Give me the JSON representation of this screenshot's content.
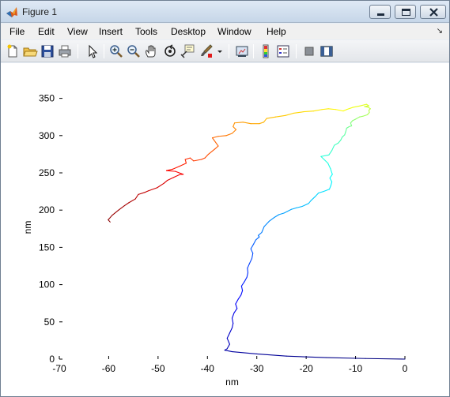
{
  "window": {
    "title": "Figure 1"
  },
  "menu": {
    "items": [
      "File",
      "Edit",
      "View",
      "Insert",
      "Tools",
      "Desktop",
      "Window",
      "Help"
    ],
    "overflow_arrow": "↘"
  },
  "toolbar": {
    "icons": [
      "new-file-icon",
      "open-folder-icon",
      "save-icon",
      "print-icon",
      "pointer-icon",
      "zoom-in-icon",
      "zoom-out-icon",
      "pan-hand-icon",
      "rotate-3d-icon",
      "data-cursor-icon",
      "brush-icon",
      "link-plot-icon",
      "colorbar-icon",
      "legend-icon",
      "hide-plot-tools-icon",
      "show-plot-tools-icon"
    ]
  },
  "chart_data": {
    "type": "line",
    "title": "",
    "xlabel": "nm",
    "ylabel": "nm",
    "xlim": [
      -70,
      0
    ],
    "ylim": [
      0,
      375
    ],
    "xticks": [
      -70,
      -60,
      -50,
      -40,
      -30,
      -20,
      -10,
      0
    ],
    "yticks": [
      0,
      50,
      100,
      150,
      200,
      250,
      300,
      350
    ],
    "xtick_labels": [
      "-70",
      "-60",
      "-50",
      "-40",
      "-30",
      "-20",
      "-10",
      "0"
    ],
    "ytick_labels": [
      "0",
      "50",
      "100",
      "150",
      "200",
      "250",
      "300",
      "350"
    ],
    "grid": false,
    "colormap": "jet",
    "color_start": "#00008f",
    "color_end": "#800000",
    "series": [
      {
        "x": [
          0,
          -8,
          -16,
          -24,
          -30,
          -35,
          -36.5,
          -36,
          -35.5,
          -36,
          -35.5,
          -35,
          -34.8,
          -35,
          -34.6,
          -34,
          -34.3,
          -33.8,
          -33.2,
          -32.9,
          -33.1,
          -32.5,
          -32,
          -31.8,
          -31.9,
          -31.5,
          -31,
          -30.8,
          -31.2,
          -30.6,
          -30.2,
          -29.5,
          -29.7,
          -29,
          -28.5,
          -27.5,
          -26.5,
          -25.5,
          -24.5,
          -23,
          -22,
          -20.8,
          -19.5,
          -19,
          -18.2,
          -17.5,
          -16.5,
          -15.3,
          -15,
          -14.8,
          -15.2,
          -14.7,
          -14.9,
          -15.1,
          -15.6,
          -17.0,
          -15.4,
          -14.8,
          -14.3,
          -13.5,
          -13,
          -12.7,
          -12.2,
          -12,
          -11.8,
          -11.3,
          -10.8,
          -11,
          -10.6,
          -10,
          -9.2,
          -8.5,
          -7.6,
          -7.2,
          -7.3,
          -7.0,
          -7.4,
          -8.2,
          -7.3,
          -7.8,
          -9.0,
          -10.5,
          -11.8,
          -12.5,
          -14,
          -15.5,
          -16.8,
          -18.5,
          -20.5,
          -22.6,
          -24.2,
          -26.2,
          -28,
          -28.6,
          -29.5,
          -31.2,
          -32.8,
          -34.5,
          -34.8,
          -34.2,
          -35,
          -36.2,
          -37.8,
          -39.0,
          -37.8,
          -38.5,
          -39.8,
          -40.5,
          -41.2,
          -42.8,
          -43.5,
          -44.5,
          -44.3,
          -45.6,
          -47,
          -48.3,
          -46.5,
          -44.9,
          -45.5,
          -46.8,
          -48.1,
          -48.8,
          -50.2,
          -51.9,
          -52.6,
          -54.0,
          -54.6,
          -55.9,
          -56.8,
          -58.0,
          -59.3,
          -60.1,
          -59.7
        ],
        "y": [
          0,
          0.8,
          2,
          4,
          7,
          10,
          12,
          14,
          20,
          28,
          35,
          42,
          48,
          55,
          62,
          68,
          74,
          80,
          86,
          92,
          98,
          104,
          110,
          116,
          122,
          128,
          135,
          142,
          148,
          155,
          160,
          164,
          166,
          170,
          178,
          185,
          190,
          194,
          196,
          201,
          203,
          205,
          209,
          213,
          218,
          223,
          225,
          228,
          233,
          238,
          243,
          248,
          252,
          256,
          263,
          272,
          274,
          280,
          287,
          290,
          294,
          298,
          301,
          305,
          310,
          312,
          313,
          317,
          320,
          322,
          325,
          326,
          328,
          331,
          334,
          336,
          338,
          339,
          340,
          342,
          340,
          338,
          335,
          333,
          335,
          336,
          335,
          333,
          332,
          330,
          327,
          325,
          323,
          318,
          316,
          316,
          318,
          317,
          312,
          308,
          303,
          300,
          299,
          297,
          286,
          282,
          275,
          270,
          268,
          266,
          270,
          268,
          263,
          259,
          255,
          253,
          252,
          248,
          248,
          244,
          240,
          236,
          230,
          226,
          224,
          221,
          215,
          210,
          206,
          200,
          193,
          187,
          184
        ]
      }
    ]
  }
}
